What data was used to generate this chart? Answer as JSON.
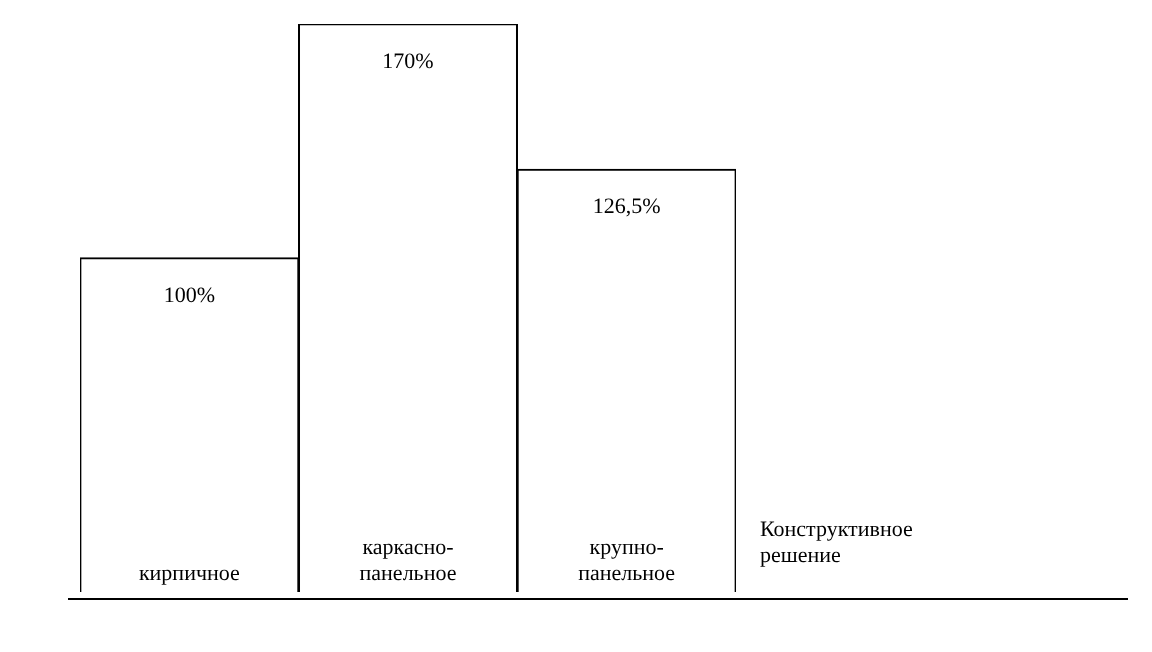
{
  "chart_data": {
    "type": "bar",
    "xlabel": "Конструктивное решение",
    "categories": [
      "кирпичное",
      "каркасно-панельное",
      "крупно-панельное"
    ],
    "values": [
      100,
      170,
      126.5
    ],
    "value_labels": [
      "100%",
      "170%",
      "126,5%"
    ],
    "color": "#ffffff"
  }
}
